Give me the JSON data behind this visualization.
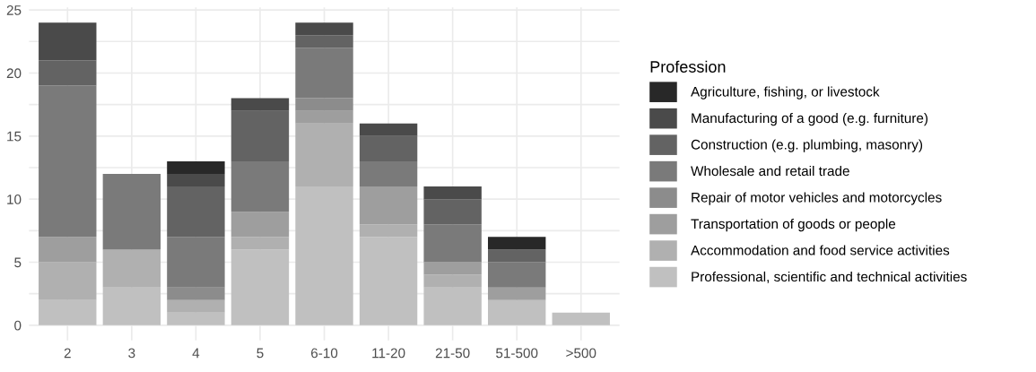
{
  "chart_data": {
    "type": "bar",
    "stacked": true,
    "legend_title": "Profession",
    "legend": "right",
    "grid": true,
    "categories": [
      "2",
      "3",
      "4",
      "5",
      "6-10",
      "11-20",
      "21-50",
      "51-500",
      ">500"
    ],
    "ylim": [
      -1.2,
      25.2
    ],
    "yticks": [
      0,
      {
        "value": 2.5,
        "label": null
      },
      5,
      {
        "value": 7.5,
        "label": null
      },
      10,
      {
        "value": 12.5,
        "label": null
      },
      15,
      {
        "value": 17.5,
        "label": null
      },
      20,
      {
        "value": 22.5,
        "label": null
      },
      25
    ],
    "series": [
      {
        "name": "Professional, scientific and technical activities",
        "color": "#c0c0c0",
        "values": [
          2,
          3,
          1,
          6,
          11,
          7,
          3,
          2,
          1
        ]
      },
      {
        "name": "Accommodation and food service activities",
        "color": "#b0b0b0",
        "values": [
          3,
          3,
          1,
          1,
          5,
          1,
          1,
          0,
          0
        ]
      },
      {
        "name": "Transportation of goods or people",
        "color": "#9e9e9e",
        "values": [
          2,
          0,
          0,
          2,
          1,
          3,
          1,
          1,
          0
        ]
      },
      {
        "name": "Repair of motor vehicles and motorcycles",
        "color": "#8c8c8c",
        "values": [
          0,
          0,
          1,
          0,
          1,
          0,
          0,
          0,
          0
        ]
      },
      {
        "name": "Wholesale and retail trade",
        "color": "#7a7a7a",
        "values": [
          12,
          6,
          4,
          4,
          4,
          2,
          3,
          2,
          0
        ]
      },
      {
        "name": "Construction (e.g. plumbing, masonry)",
        "color": "#636363",
        "values": [
          2,
          0,
          4,
          4,
          1,
          2,
          2,
          1,
          0
        ]
      },
      {
        "name": "Manufacturing of a good (e.g. furniture)",
        "color": "#4a4a4a",
        "values": [
          3,
          0,
          1,
          1,
          1,
          1,
          1,
          0,
          0
        ]
      },
      {
        "name": "Agriculture, fishing, or livestock",
        "color": "#282828",
        "values": [
          0,
          0,
          1,
          0,
          0,
          0,
          0,
          1,
          0
        ]
      }
    ]
  }
}
